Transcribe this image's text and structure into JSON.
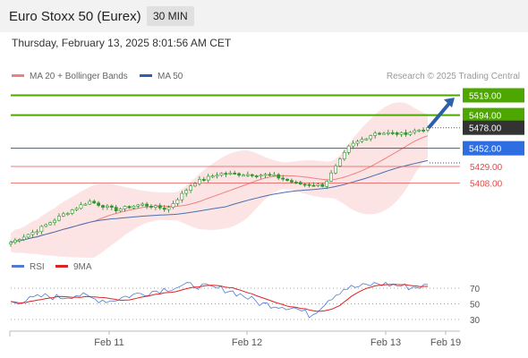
{
  "header": {
    "title": "Euro Stoxx 50 (Eurex)",
    "timeframe": "30 MIN",
    "timestamp": "Thursday, February 13, 2025 8:01:56 AM CET"
  },
  "legend": {
    "ma20": "MA 20 + Bollinger Bands",
    "ma50": "MA 50",
    "research": "Research © 2025 Trading Central"
  },
  "rsi_legend": {
    "rsi": "RSI",
    "ma9": "9MA"
  },
  "colors": {
    "green_level": "#4ea600",
    "blue_level": "#2f5fa8",
    "red_level": "#e24a4a",
    "current_tag": "#333333",
    "bollinger_fill": "#fde1e1",
    "ma20": "#f08080",
    "ma50": "#4a6fb0",
    "candle": "#2a9a2a",
    "rsi_line": "#4f7bd6",
    "rsi_ma": "#dd2222",
    "arrow": "#2f5fa8"
  },
  "chart_data": {
    "type": "candlestick",
    "title": "Euro Stoxx 50 (Eurex)",
    "timeframe": "30 MIN",
    "x_ticks": [
      "Feb 11",
      "Feb 12",
      "Feb 13",
      "Feb 19"
    ],
    "levels": [
      {
        "value": 5519.0,
        "label": "5519.00",
        "kind": "resistance"
      },
      {
        "value": 5494.0,
        "label": "5494.00",
        "kind": "resistance"
      },
      {
        "value": 5478.0,
        "label": "5478.00",
        "kind": "current"
      },
      {
        "value": 5452.0,
        "label": "5452.00",
        "kind": "pivot"
      },
      {
        "value": 5429.0,
        "label": "5429.00",
        "kind": "support"
      },
      {
        "value": 5408.0,
        "label": "5408.00",
        "kind": "support"
      }
    ],
    "price_series": [
      {
        "date": "Feb 10",
        "close": 5333
      },
      {
        "date": "Feb 10",
        "close": 5348
      },
      {
        "date": "Feb 11",
        "close": 5368
      },
      {
        "date": "Feb 11",
        "close": 5385
      },
      {
        "date": "Feb 11",
        "close": 5374
      },
      {
        "date": "Feb 11",
        "close": 5381
      },
      {
        "date": "Feb 11",
        "close": 5375
      },
      {
        "date": "Feb 12",
        "close": 5408
      },
      {
        "date": "Feb 12",
        "close": 5420
      },
      {
        "date": "Feb 12",
        "close": 5419
      },
      {
        "date": "Feb 12",
        "close": 5418
      },
      {
        "date": "Feb 12",
        "close": 5407
      },
      {
        "date": "Feb 12",
        "close": 5405
      },
      {
        "date": "Feb 12",
        "close": 5455
      },
      {
        "date": "Feb 13",
        "close": 5472
      },
      {
        "date": "Feb 13",
        "close": 5470
      },
      {
        "date": "Feb 13",
        "close": 5478
      }
    ],
    "rsi": {
      "label": "RSI",
      "ma_label": "9MA",
      "ticks": [
        70,
        50,
        30
      ],
      "values": [
        52,
        55,
        60,
        58,
        62,
        56,
        54,
        60,
        64,
        68,
        72,
        74,
        70,
        68,
        60,
        50,
        48,
        45,
        35,
        55,
        70,
        72,
        76,
        74,
        71,
        73
      ]
    }
  }
}
